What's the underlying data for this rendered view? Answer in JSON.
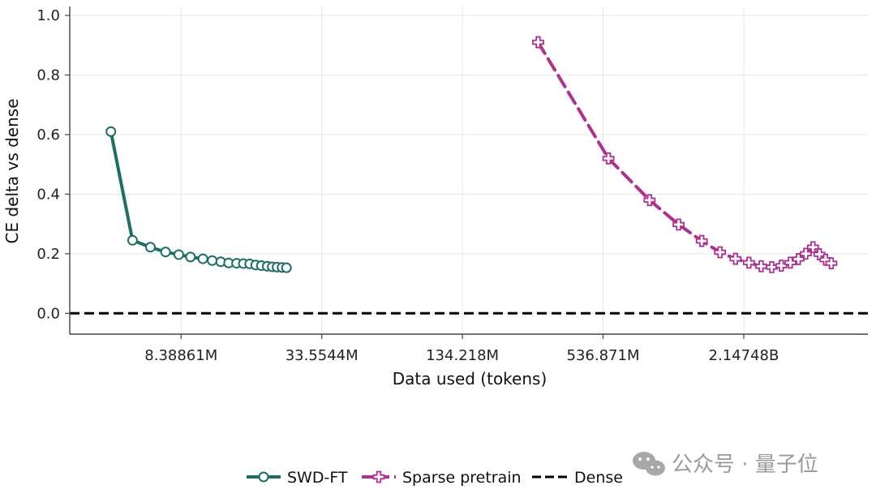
{
  "chart_data": {
    "type": "line",
    "xlabel": "Data used (tokens)",
    "ylabel": "CE delta vs dense",
    "x_scale": "log2",
    "x_ticks": [
      {
        "value": 8388608,
        "label": "8.38861M"
      },
      {
        "value": 33554432,
        "label": "33.5544M"
      },
      {
        "value": 134217728,
        "label": "134.218M"
      },
      {
        "value": 536870912,
        "label": "536.871M"
      },
      {
        "value": 2147483648,
        "label": "2.14748B"
      }
    ],
    "y_ticks": [
      {
        "value": 0.0,
        "label": "0.0"
      },
      {
        "value": 0.2,
        "label": "0.2"
      },
      {
        "value": 0.4,
        "label": "0.4"
      },
      {
        "value": 0.6,
        "label": "0.6"
      },
      {
        "value": 0.8,
        "label": "0.8"
      },
      {
        "value": 1.0,
        "label": "1.0"
      }
    ],
    "xlim": [
      2800000,
      7300000000
    ],
    "ylim": [
      -0.07,
      1.03
    ],
    "grid": true,
    "legend_position": "bottom-center",
    "series": [
      {
        "name": "SWD-FT",
        "color": "#1f6e66",
        "style": "solid",
        "marker": "circle",
        "points": [
          [
            4200000,
            0.61
          ],
          [
            5200000,
            0.245
          ],
          [
            6200000,
            0.222
          ],
          [
            7200000,
            0.206
          ],
          [
            8200000,
            0.197
          ],
          [
            9200000,
            0.189
          ],
          [
            10400000,
            0.183
          ],
          [
            11400000,
            0.177
          ],
          [
            12400000,
            0.173
          ],
          [
            13400000,
            0.169
          ],
          [
            14500000,
            0.168
          ],
          [
            15500000,
            0.167
          ],
          [
            16500000,
            0.166
          ],
          [
            17500000,
            0.162
          ],
          [
            18500000,
            0.16
          ],
          [
            19600000,
            0.158
          ],
          [
            20600000,
            0.156
          ],
          [
            21600000,
            0.155
          ],
          [
            22700000,
            0.154
          ],
          [
            23700000,
            0.153
          ]
        ]
      },
      {
        "name": "Sparse pretrain",
        "color": "#b0308f",
        "style": "dashed",
        "marker": "plus",
        "points": [
          [
            283000000,
            0.91
          ],
          [
            566000000,
            0.52
          ],
          [
            849000000,
            0.38
          ],
          [
            1130000000,
            0.298
          ],
          [
            1420000000,
            0.243
          ],
          [
            1700000000,
            0.205
          ],
          [
            1980000000,
            0.183
          ],
          [
            2260000000,
            0.17
          ],
          [
            2550000000,
            0.158
          ],
          [
            2830000000,
            0.155
          ],
          [
            3110000000,
            0.16
          ],
          [
            3400000000,
            0.17
          ],
          [
            3680000000,
            0.182
          ],
          [
            3960000000,
            0.2
          ],
          [
            4250000000,
            0.222
          ],
          [
            4530000000,
            0.198
          ],
          [
            4810000000,
            0.18
          ],
          [
            5090000000,
            0.168
          ]
        ]
      },
      {
        "name": "Dense",
        "color": "#000000",
        "style": "dashed",
        "marker": "none",
        "y_constant": 0.0
      }
    ]
  },
  "watermark": {
    "text": "公众号 · 量子位",
    "icon": "wechat-icon"
  }
}
